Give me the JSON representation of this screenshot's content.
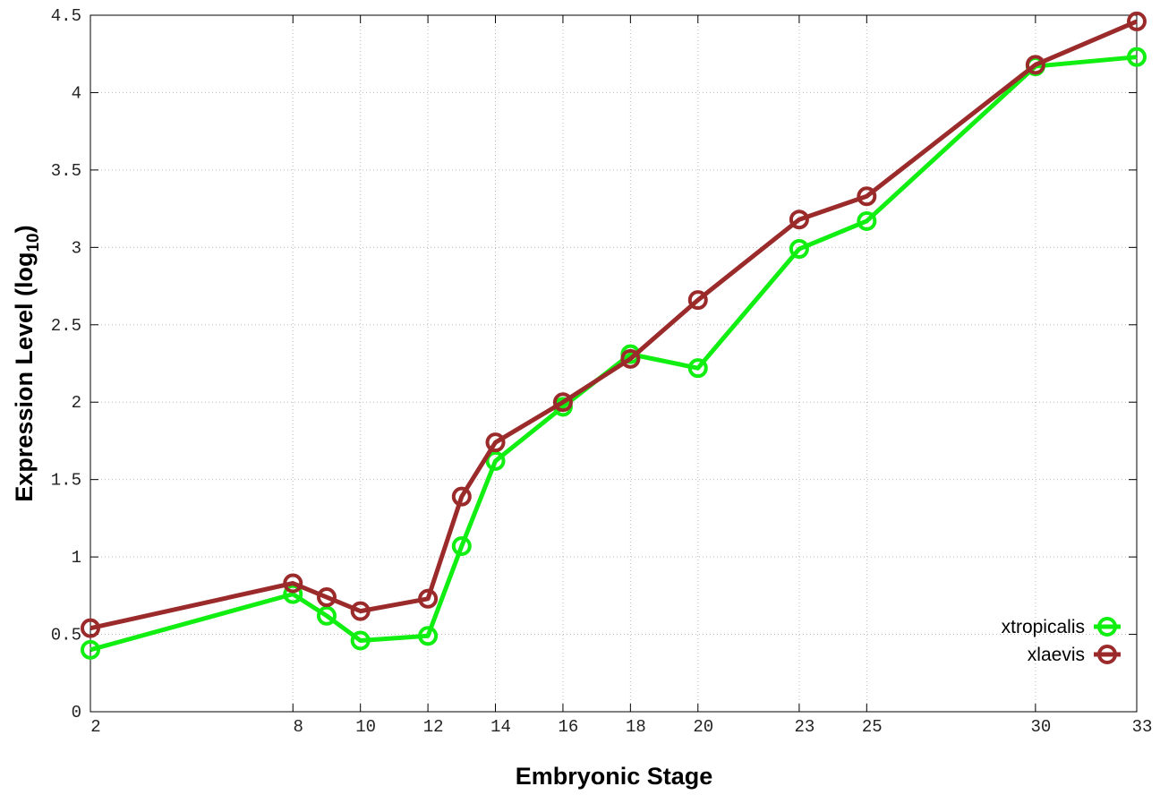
{
  "chart_data": {
    "type": "line",
    "x_label": "Embryonic Stage",
    "y_label": {
      "text": "Expression Level (log",
      "subscript": "10",
      "suffix": ")"
    },
    "x": [
      2,
      8,
      9,
      10,
      12,
      13,
      14,
      16,
      18,
      20,
      23,
      25,
      30,
      33
    ],
    "series": [
      {
        "name": "xtropicalis",
        "color": "#11ee11",
        "values": [
          0.4,
          0.76,
          0.62,
          0.46,
          0.49,
          1.07,
          1.62,
          1.97,
          2.31,
          2.22,
          2.99,
          3.17,
          4.17,
          4.23
        ]
      },
      {
        "name": "xlaevis",
        "color": "#9b2a2a",
        "values": [
          0.54,
          0.83,
          0.74,
          0.65,
          0.73,
          1.39,
          1.74,
          2.0,
          2.28,
          2.66,
          3.18,
          3.33,
          4.18,
          4.46
        ]
      }
    ],
    "xlim": [
      2,
      33
    ],
    "xticks": [
      2,
      8,
      10,
      12,
      14,
      16,
      18,
      20,
      23,
      25,
      30,
      33
    ],
    "ylim": [
      0,
      4.5
    ],
    "yticks": [
      0,
      0.5,
      1,
      1.5,
      2,
      2.5,
      3,
      3.5,
      4,
      4.5
    ],
    "grid": true,
    "legend": "bottom-right"
  }
}
